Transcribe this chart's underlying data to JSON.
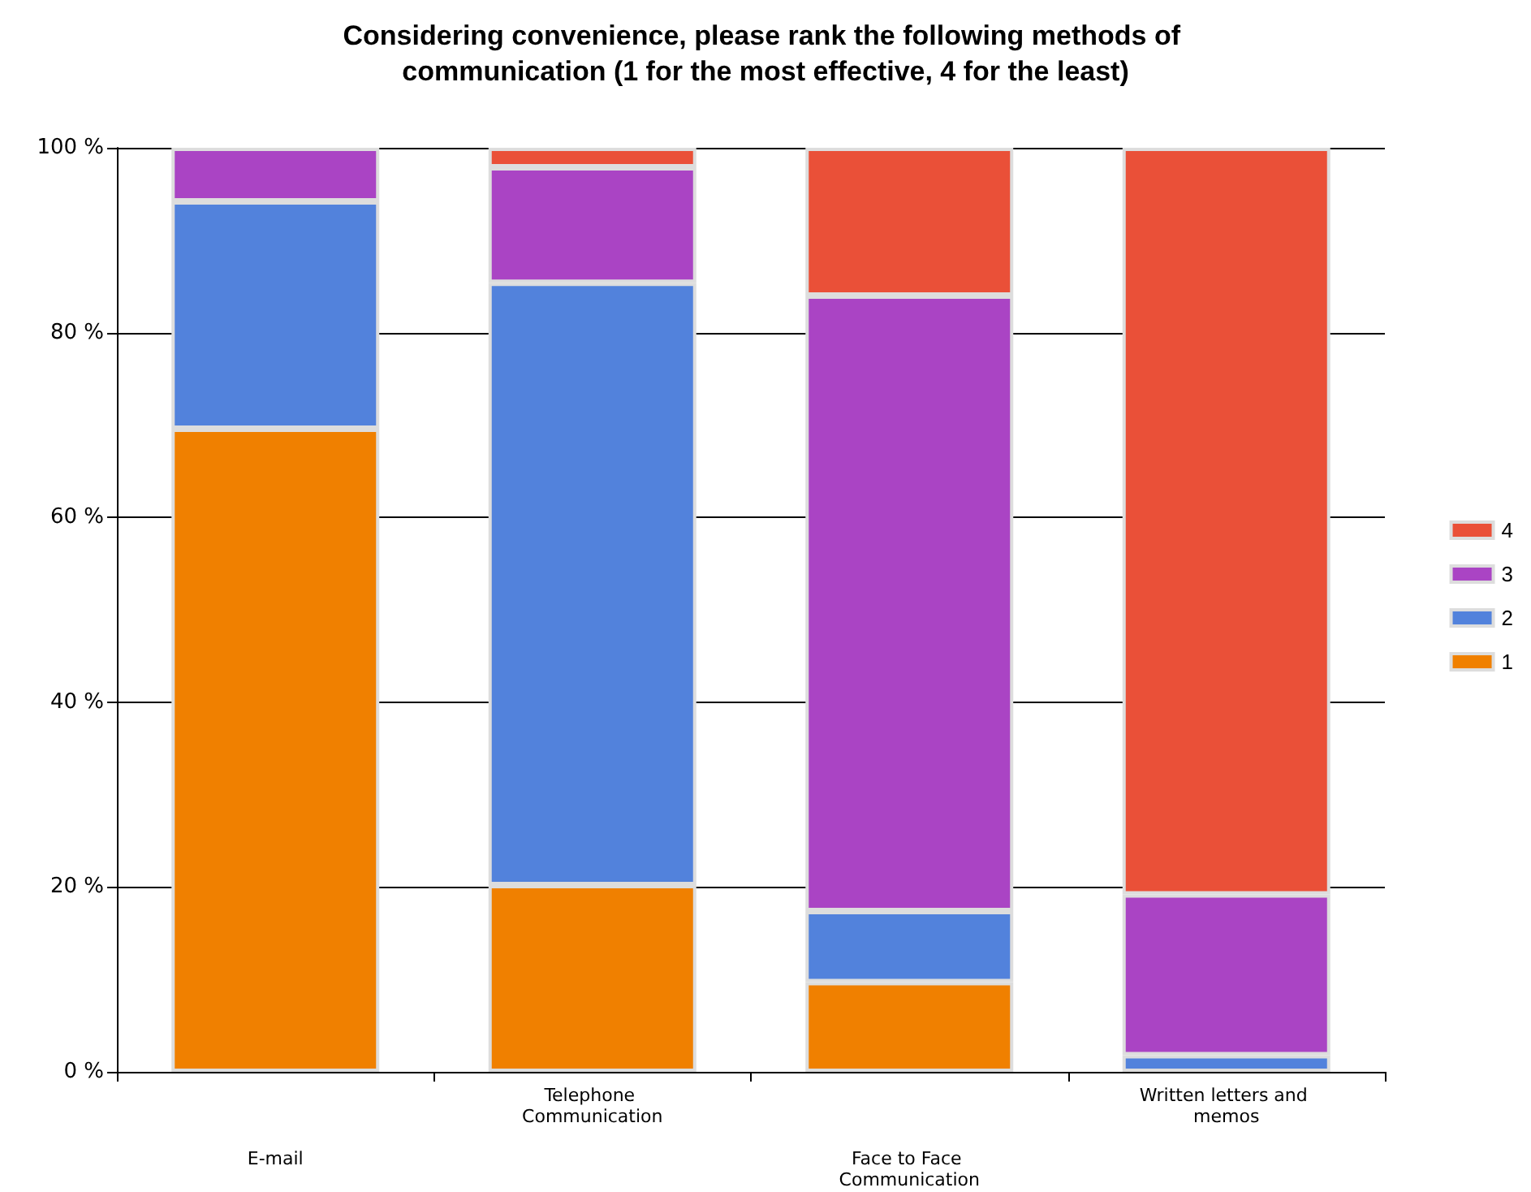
{
  "chart_data": {
    "type": "bar",
    "stacked": true,
    "title": "Considering convenience, please rank the following methods of communication (1 for the most effective, 4 for the least)",
    "categories": [
      "E-mail",
      "Telephone Communication",
      "Face to Face Communication",
      "Written letters and memos"
    ],
    "series": [
      {
        "name": "1",
        "color": "#f08000",
        "values": [
          69.6,
          20.2,
          9.7,
          0
        ]
      },
      {
        "name": "2",
        "color": "#5282dc",
        "values": [
          24.6,
          65.2,
          7.7,
          1.8
        ]
      },
      {
        "name": "3",
        "color": "#aa44c4",
        "values": [
          5.8,
          12.5,
          66.6,
          17.4
        ]
      },
      {
        "name": "4",
        "color": "#ea5038",
        "values": [
          0,
          2.1,
          16.0,
          80.8
        ]
      }
    ],
    "ylim": [
      0,
      100
    ],
    "yticks": [
      {
        "value": 0,
        "label": "0 %"
      },
      {
        "value": 20,
        "label": "20 %"
      },
      {
        "value": 40,
        "label": "40 %"
      },
      {
        "value": 60,
        "label": "60 %"
      },
      {
        "value": 80,
        "label": "80 %"
      },
      {
        "value": 100,
        "label": "100 %"
      }
    ],
    "grid": "y",
    "legend": "right"
  }
}
